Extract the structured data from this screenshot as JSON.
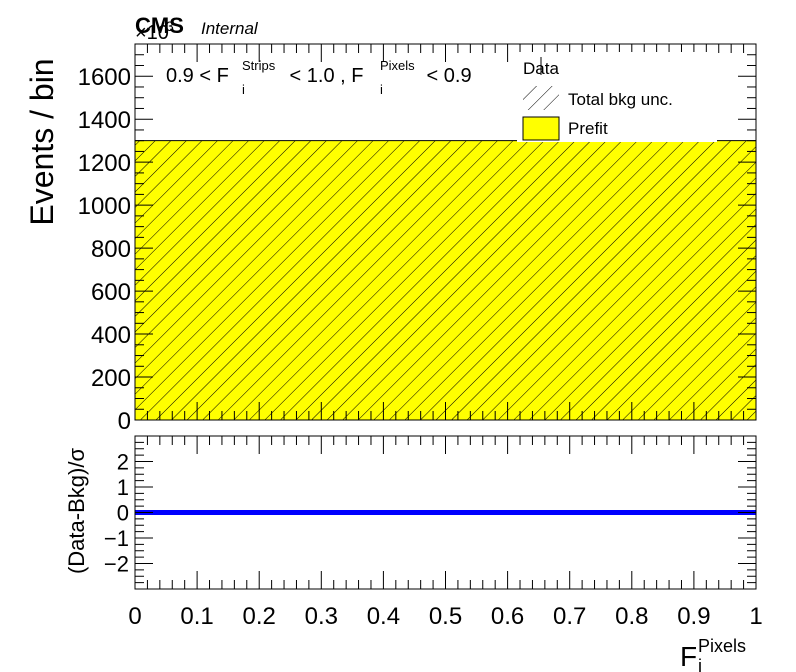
{
  "header": {
    "cms_label": "CMS",
    "internal_label": "Internal",
    "exponent_label": "×10",
    "exponent_value": "3"
  },
  "selection": {
    "prefix": "0.9 < F",
    "strips_sub": "i",
    "strips_sup": "Strips",
    "middle": " < 1.0 , F",
    "pixels_sub": "i",
    "pixels_sup": "Pixels",
    "suffix": " < 0.9"
  },
  "legend": {
    "data": "Data",
    "unc": "Total bkg unc.",
    "prefit": "Prefit"
  },
  "colors": {
    "prefit": "#ffff00",
    "ratio_line": "#0000ff",
    "frame": "#000000"
  },
  "chart_data": [
    {
      "type": "bar",
      "panel": "main",
      "ylabel": "Events / bin",
      "y_scale_note": "×10^3",
      "xlim": [
        0,
        1
      ],
      "ylim": [
        0,
        1750
      ],
      "yticks": [
        0,
        200,
        400,
        600,
        800,
        1000,
        1200,
        1400,
        1600
      ],
      "ytick_labels": [
        "0",
        "200",
        "400",
        "600",
        "800",
        "1000",
        "1200",
        "1400",
        "1600"
      ],
      "bins": [
        [
          0,
          1
        ]
      ],
      "series": [
        {
          "name": "Prefit",
          "values": [
            1300
          ]
        },
        {
          "name": "Total bkg unc.",
          "values": [
            1300
          ]
        }
      ],
      "grid": false,
      "legend_position": "top-right"
    },
    {
      "type": "line",
      "panel": "ratio",
      "ylabel": "(Data-Bkg)/σ",
      "xlabel": "F",
      "xlabel_sub": "i",
      "xlabel_sup": "Pixels",
      "xlim": [
        0,
        1
      ],
      "ylim": [
        -3,
        3
      ],
      "xticks": [
        0,
        0.1,
        0.2,
        0.3,
        0.4,
        0.5,
        0.6,
        0.7,
        0.8,
        0.9,
        1
      ],
      "xtick_labels": [
        "0",
        "0.1",
        "0.2",
        "0.3",
        "0.4",
        "0.5",
        "0.6",
        "0.7",
        "0.8",
        "0.9",
        "1"
      ],
      "yticks": [
        -2,
        -1,
        0,
        1,
        2
      ],
      "ytick_labels": [
        "−2",
        "−1",
        "0",
        "1",
        "2"
      ],
      "x": [
        0,
        1
      ],
      "y": [
        0,
        0
      ],
      "grid": false
    }
  ]
}
